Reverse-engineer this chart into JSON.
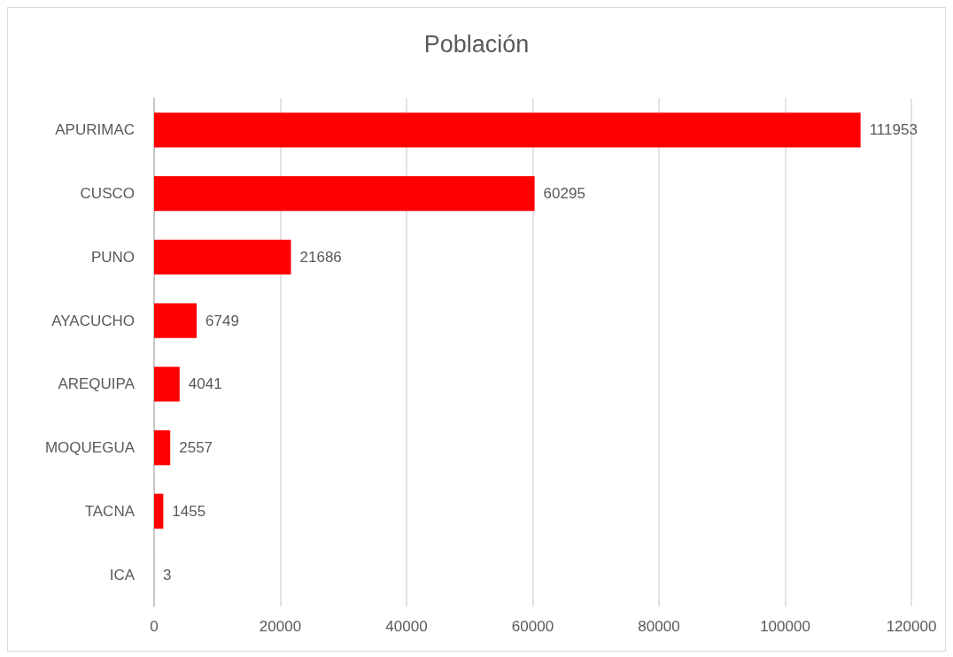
{
  "chart_data": {
    "type": "bar",
    "title": "Población",
    "orientation": "horizontal",
    "categories": [
      "APURIMAC",
      "CUSCO",
      "PUNO",
      "AYACUCHO",
      "AREQUIPA",
      "MOQUEGUA",
      "TACNA",
      "ICA"
    ],
    "values": [
      111953,
      60295,
      21686,
      6749,
      4041,
      2557,
      1455,
      3
    ],
    "color": "#ff0000",
    "xlim": [
      0,
      120000
    ],
    "xticks": [
      0,
      20000,
      40000,
      60000,
      80000,
      100000,
      120000
    ],
    "grid": "x",
    "data_labels": true
  }
}
